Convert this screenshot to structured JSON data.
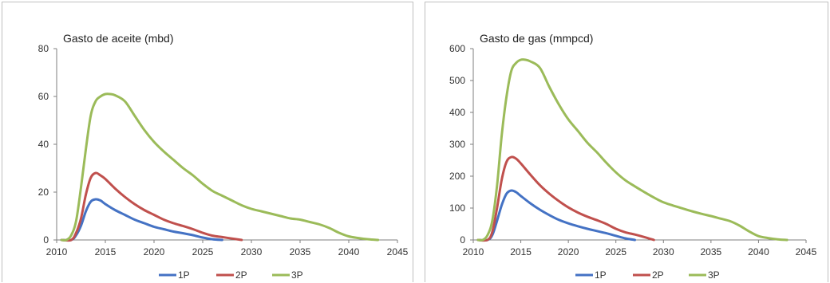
{
  "chart_data": [
    {
      "type": "line",
      "title": "Gasto de aceite (mbd)",
      "xlabel": "",
      "ylabel": "",
      "xlim": [
        2010,
        2045
      ],
      "ylim": [
        0,
        80
      ],
      "xticks": [
        2010,
        2015,
        2020,
        2025,
        2030,
        2035,
        2040,
        2045
      ],
      "yticks": [
        0,
        20,
        40,
        60,
        80
      ],
      "grid": false,
      "legend_position": "bottom",
      "series": [
        {
          "name": "1P",
          "color": "#4472c4",
          "x": [
            2010.5,
            2011.5,
            2012,
            2012.5,
            2013,
            2013.5,
            2014,
            2014.5,
            2015,
            2016,
            2017,
            2018,
            2019,
            2020,
            2021,
            2022,
            2023,
            2024,
            2025,
            2026,
            2027
          ],
          "y": [
            0,
            0,
            2,
            6,
            12,
            16,
            17,
            16.5,
            15,
            12.5,
            10.5,
            8.5,
            7,
            5.5,
            4.5,
            3.5,
            2.8,
            2,
            1,
            0.3,
            0
          ]
        },
        {
          "name": "2P",
          "color": "#c0504d",
          "x": [
            2010.5,
            2011.5,
            2012,
            2012.5,
            2013,
            2013.5,
            2014,
            2014.5,
            2015,
            2016,
            2017,
            2018,
            2019,
            2020,
            2021,
            2022,
            2023,
            2024,
            2025,
            2026,
            2027,
            2028,
            2029
          ],
          "y": [
            0,
            0,
            3,
            9,
            19,
            26,
            28,
            27,
            25.5,
            21.5,
            18,
            15,
            12.5,
            10.5,
            8.5,
            7,
            5.8,
            4.5,
            3,
            1.8,
            1.2,
            0.6,
            0
          ]
        },
        {
          "name": "3P",
          "color": "#9bbb59",
          "x": [
            2010.5,
            2011,
            2011.5,
            2012,
            2012.5,
            2013,
            2013.5,
            2014,
            2014.5,
            2015,
            2015.5,
            2016,
            2017,
            2018,
            2019,
            2020,
            2021,
            2022,
            2023,
            2024,
            2025,
            2026,
            2027,
            2028,
            2029,
            2030,
            2031,
            2032,
            2033,
            2034,
            2035,
            2036,
            2037,
            2038,
            2039,
            2040,
            2041,
            2042,
            2043
          ],
          "y": [
            0,
            0,
            2,
            8,
            22,
            38,
            52,
            58,
            60,
            61,
            61,
            60.5,
            58,
            52,
            46,
            41,
            37,
            33.5,
            30,
            27,
            23.5,
            20.5,
            18.5,
            16.5,
            14.5,
            13,
            12,
            11,
            10,
            9,
            8.5,
            7.5,
            6.5,
            5,
            3,
            1.5,
            0.8,
            0.3,
            0
          ]
        }
      ]
    },
    {
      "type": "line",
      "title": "Gasto de gas (mmpcd)",
      "xlabel": "",
      "ylabel": "",
      "xlim": [
        2010,
        2045
      ],
      "ylim": [
        0,
        600
      ],
      "xticks": [
        2010,
        2015,
        2020,
        2025,
        2030,
        2035,
        2040,
        2045
      ],
      "yticks": [
        0,
        100,
        200,
        300,
        400,
        500,
        600
      ],
      "grid": false,
      "legend_position": "bottom",
      "series": [
        {
          "name": "1P",
          "color": "#4472c4",
          "x": [
            2010.5,
            2011.5,
            2012,
            2012.5,
            2013,
            2013.5,
            2014,
            2014.5,
            2015,
            2016,
            2017,
            2018,
            2019,
            2020,
            2021,
            2022,
            2023,
            2024,
            2025,
            2026,
            2027
          ],
          "y": [
            0,
            0,
            15,
            60,
            110,
            145,
            155,
            150,
            138,
            115,
            95,
            78,
            63,
            52,
            43,
            35,
            28,
            21,
            13,
            5,
            0
          ]
        },
        {
          "name": "2P",
          "color": "#c0504d",
          "x": [
            2010.5,
            2011.5,
            2012,
            2012.5,
            2013,
            2013.5,
            2014,
            2014.5,
            2015,
            2016,
            2017,
            2018,
            2019,
            2020,
            2021,
            2022,
            2023,
            2024,
            2025,
            2026,
            2027,
            2028,
            2029
          ],
          "y": [
            0,
            0,
            25,
            100,
            190,
            245,
            260,
            255,
            240,
            205,
            172,
            145,
            122,
            102,
            86,
            73,
            62,
            50,
            35,
            24,
            17,
            9,
            0
          ]
        },
        {
          "name": "3P",
          "color": "#9bbb59",
          "x": [
            2010.5,
            2011,
            2011.5,
            2012,
            2012.5,
            2013,
            2013.5,
            2014,
            2014.5,
            2015,
            2015.5,
            2016,
            2017,
            2018,
            2019,
            2020,
            2021,
            2022,
            2023,
            2024,
            2025,
            2026,
            2027,
            2028,
            2029,
            2030,
            2031,
            2032,
            2033,
            2034,
            2035,
            2036,
            2037,
            2038,
            2039,
            2040,
            2041,
            2042,
            2043
          ],
          "y": [
            0,
            0,
            15,
            60,
            170,
            330,
            450,
            530,
            555,
            565,
            565,
            560,
            540,
            480,
            425,
            378,
            342,
            305,
            275,
            242,
            212,
            187,
            168,
            150,
            133,
            118,
            108,
            99,
            90,
            82,
            75,
            67,
            59,
            45,
            27,
            12,
            6,
            2,
            0
          ]
        }
      ]
    }
  ]
}
